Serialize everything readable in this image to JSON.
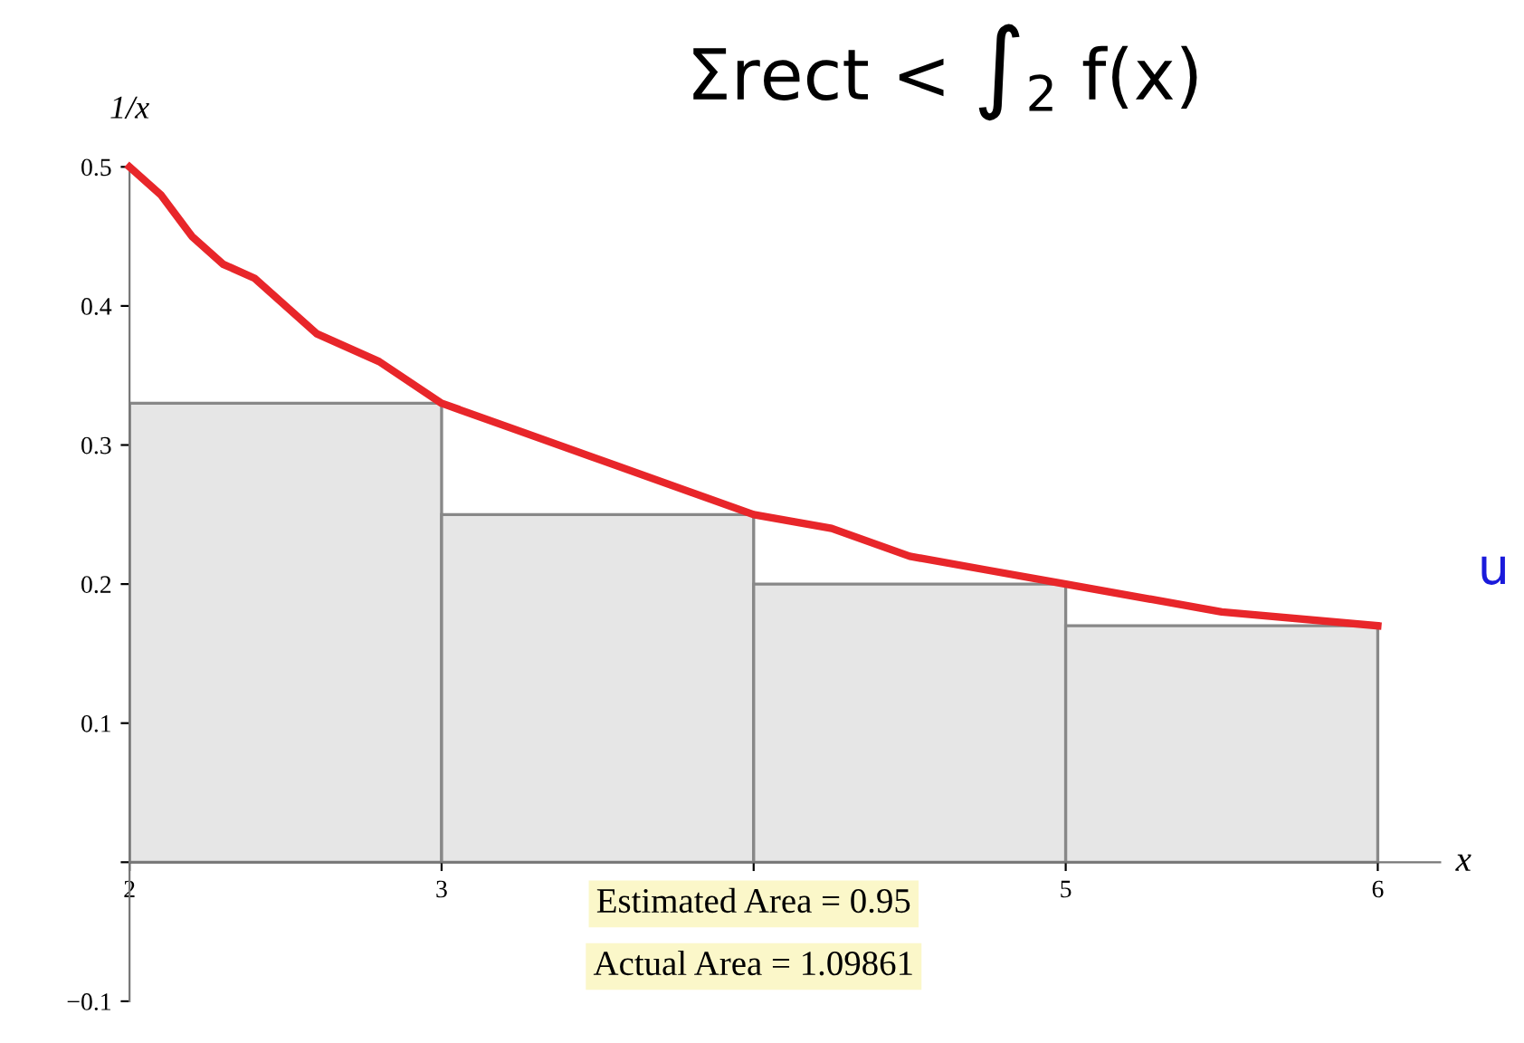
{
  "chart_data": {
    "type": "histogram",
    "bins": [
      2,
      3,
      4,
      5,
      6
    ],
    "values": [
      0.33,
      0.25,
      0.2,
      0.17
    ],
    "color": "#e6e6e6",
    "series": [
      {
        "type": "line",
        "color": "#e8262a",
        "x": [
          2,
          2.1,
          2.2,
          2.3,
          2.4,
          2.5,
          2.6,
          2.8,
          3,
          3.25,
          3.5,
          3.75,
          4,
          4.25,
          4.5,
          4.75,
          5,
          5.5,
          6
        ],
        "values": [
          0.5,
          0.48,
          0.45,
          0.43,
          0.42,
          0.4,
          0.38,
          0.36,
          0.33,
          0.31,
          0.29,
          0.27,
          0.25,
          0.24,
          0.22,
          0.21,
          0.2,
          0.18,
          0.17
        ]
      }
    ],
    "xlabel": "x",
    "ylabel": "1/x",
    "xlim": [
      2,
      6.2
    ],
    "ylim": [
      -0.1,
      0.5
    ],
    "xticks": [
      {
        "value": 2,
        "label": "2"
      },
      3,
      {
        "value": 4,
        "label": null
      },
      5,
      6
    ],
    "yticks": [
      -0.1,
      {
        "value": 0,
        "label": null
      },
      0.1,
      0.2,
      0.3,
      0.4,
      0.5
    ],
    "grid": false,
    "annotations": [
      "Estimated Area = 0.95",
      "Actual Area = 1.09861",
      "Σrect < ∫$_{2}$ f(x)",
      "u"
    ]
  }
}
